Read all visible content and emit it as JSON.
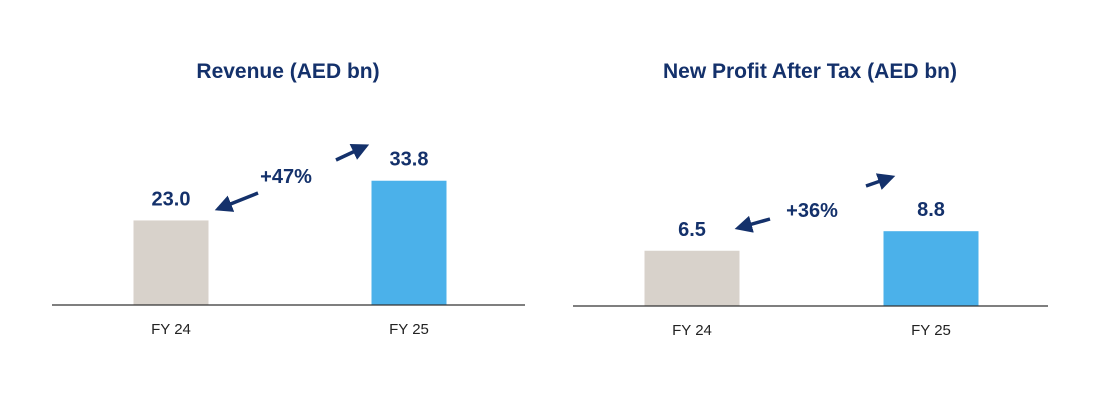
{
  "colors": {
    "navy": "#14316b",
    "fy24_bar": "#d8d2cb",
    "fy25_bar": "#4bb1ea",
    "axis": "#333333",
    "tick_text": "#222222"
  },
  "chart_data": [
    {
      "type": "bar",
      "title": "Revenue (AED bn)",
      "categories": [
        "FY 24",
        "FY 25"
      ],
      "values": [
        23.0,
        33.8
      ],
      "value_labels": [
        "23.0",
        "33.8"
      ],
      "change_label": "+47%",
      "xlabel": "",
      "ylabel": "",
      "ylim": [
        0,
        34
      ],
      "grid": false
    },
    {
      "type": "bar",
      "title": "New Profit After Tax (AED bn)",
      "categories": [
        "FY 24",
        "FY 25"
      ],
      "values": [
        6.5,
        8.8
      ],
      "value_labels": [
        "6.5",
        "8.8"
      ],
      "change_label": "+36%",
      "xlabel": "",
      "ylabel": "",
      "ylim": [
        0,
        10
      ],
      "grid": false
    }
  ]
}
